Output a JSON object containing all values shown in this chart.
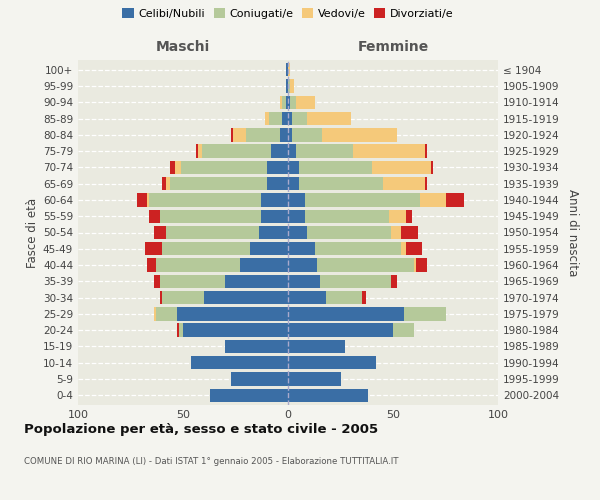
{
  "age_groups": [
    "0-4",
    "5-9",
    "10-14",
    "15-19",
    "20-24",
    "25-29",
    "30-34",
    "35-39",
    "40-44",
    "45-49",
    "50-54",
    "55-59",
    "60-64",
    "65-69",
    "70-74",
    "75-79",
    "80-84",
    "85-89",
    "90-94",
    "95-99",
    "100+"
  ],
  "birth_years": [
    "2000-2004",
    "1995-1999",
    "1990-1994",
    "1985-1989",
    "1980-1984",
    "1975-1979",
    "1970-1974",
    "1965-1969",
    "1960-1964",
    "1955-1959",
    "1950-1954",
    "1945-1949",
    "1940-1944",
    "1935-1939",
    "1930-1934",
    "1925-1929",
    "1920-1924",
    "1915-1919",
    "1910-1914",
    "1905-1909",
    "≤ 1904"
  ],
  "colors": {
    "celibe": "#3a6ea5",
    "coniugato": "#b5c99a",
    "vedovo": "#f5c97a",
    "divorziato": "#cc2222"
  },
  "maschi": {
    "celibe": [
      37,
      27,
      46,
      30,
      50,
      53,
      40,
      30,
      23,
      18,
      14,
      13,
      13,
      10,
      10,
      8,
      4,
      3,
      1,
      1,
      1
    ],
    "coniugato": [
      0,
      0,
      0,
      0,
      2,
      10,
      20,
      31,
      40,
      42,
      44,
      48,
      53,
      46,
      41,
      33,
      16,
      6,
      2,
      0,
      0
    ],
    "vedovo": [
      0,
      0,
      0,
      0,
      0,
      1,
      0,
      0,
      0,
      0,
      0,
      0,
      1,
      2,
      3,
      2,
      6,
      2,
      1,
      0,
      0
    ],
    "divorziato": [
      0,
      0,
      0,
      0,
      1,
      0,
      1,
      3,
      4,
      8,
      6,
      5,
      5,
      2,
      2,
      1,
      1,
      0,
      0,
      0,
      0
    ]
  },
  "femmine": {
    "nubile": [
      38,
      25,
      42,
      27,
      50,
      55,
      18,
      15,
      14,
      13,
      9,
      8,
      8,
      5,
      5,
      4,
      2,
      2,
      1,
      0,
      0
    ],
    "coniugata": [
      0,
      0,
      0,
      0,
      10,
      20,
      17,
      34,
      46,
      41,
      40,
      40,
      55,
      40,
      35,
      27,
      14,
      7,
      3,
      1,
      0
    ],
    "vedova": [
      0,
      0,
      0,
      0,
      0,
      0,
      0,
      0,
      1,
      2,
      5,
      8,
      12,
      20,
      28,
      34,
      36,
      21,
      9,
      2,
      1
    ],
    "divorziata": [
      0,
      0,
      0,
      0,
      0,
      0,
      2,
      3,
      5,
      8,
      8,
      3,
      9,
      1,
      1,
      1,
      0,
      0,
      0,
      0,
      0
    ]
  },
  "title": "Popolazione per età, sesso e stato civile - 2005",
  "subtitle": "COMUNE DI RIO MARINA (LI) - Dati ISTAT 1° gennaio 2005 - Elaborazione TUTTITALIA.IT",
  "maschi_label": "Maschi",
  "femmine_label": "Femmine",
  "ylabel_left": "Fasce di età",
  "ylabel_right": "Anni di nascita",
  "xlim": 100,
  "legend_labels": [
    "Celibi/Nubili",
    "Coniugati/e",
    "Vedovi/e",
    "Divorziati/e"
  ],
  "bg_color": "#f4f4ef",
  "plot_bg": "#eaeae0"
}
